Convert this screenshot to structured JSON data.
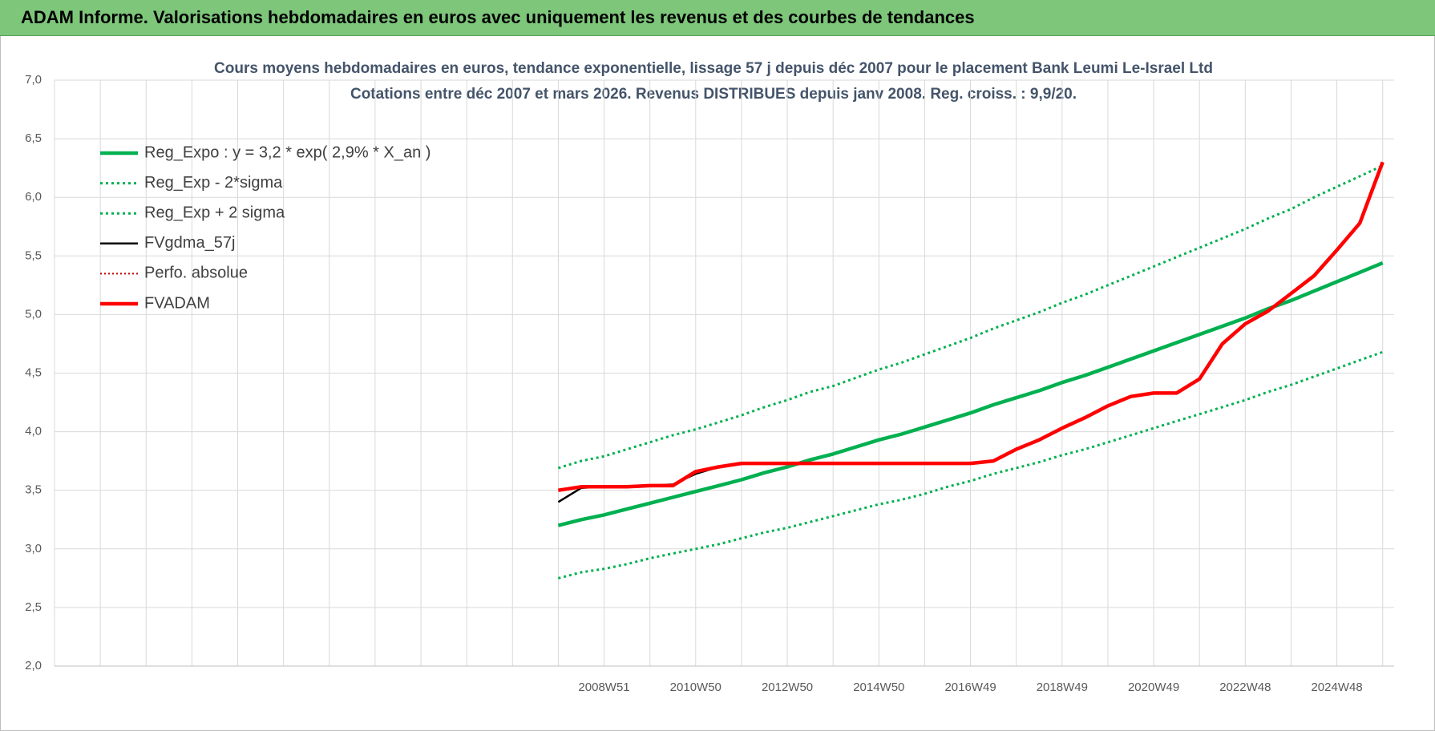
{
  "header": {
    "title": "ADAM Informe. Valorisations hebdomadaires en euros avec uniquement les revenus et des courbes de tendances"
  },
  "chart_data": {
    "type": "line",
    "title": "Cours moyens hebdomadaires en euros, tendance exponentielle, lissage 57 j depuis déc 2007 pour le placement Bank Leumi Le-Israel Ltd",
    "subtitle": "Cotations entre déc 2007 et mars 2026.  Revenus DISTRIBUES depuis janv 2008. Reg. croiss. : 9,9/20.",
    "categories": [
      null,
      null,
      null,
      null,
      null,
      null,
      null,
      null,
      null,
      null,
      null,
      null,
      null,
      null,
      null,
      null,
      null,
      null,
      null,
      null,
      null,
      null,
      null,
      null,
      "2008W51",
      null,
      null,
      null,
      "2010W50",
      null,
      null,
      null,
      "2012W50",
      null,
      null,
      null,
      "2014W50",
      null,
      null,
      null,
      "2016W49",
      null,
      null,
      null,
      "2018W49",
      null,
      null,
      null,
      "2020W49",
      null,
      null,
      null,
      "2022W48",
      null,
      null,
      null,
      "2024W48",
      null,
      null
    ],
    "ylim": [
      2.0,
      7.0
    ],
    "yticks": [
      {
        "value": 2,
        "label": "2,0"
      },
      {
        "value": 2.5,
        "label": "2,5"
      },
      {
        "value": 3,
        "label": "3,0"
      },
      {
        "value": 3.5,
        "label": "3,5"
      },
      {
        "value": 4,
        "label": "4,0"
      },
      {
        "value": 4.5,
        "label": "4,5"
      },
      {
        "value": 5,
        "label": "5,0"
      },
      {
        "value": 5.5,
        "label": "5,5"
      },
      {
        "value": 6,
        "label": "6,0"
      },
      {
        "value": 6.5,
        "label": "6,5"
      },
      {
        "value": 7,
        "label": "7,0"
      }
    ],
    "grid": true,
    "legend": "top-left",
    "series": [
      {
        "name": "Reg_Expo : y = 3,2 * exp( 2,9% *  X_an )",
        "color": "#00b050",
        "style": "thick",
        "values": [
          null,
          null,
          null,
          null,
          null,
          null,
          null,
          null,
          null,
          null,
          null,
          null,
          null,
          null,
          null,
          null,
          null,
          null,
          null,
          null,
          null,
          null,
          3.2,
          3.25,
          3.29,
          3.34,
          3.39,
          3.44,
          3.49,
          3.54,
          3.59,
          3.65,
          3.7,
          3.76,
          3.81,
          3.87,
          3.93,
          3.98,
          4.04,
          4.1,
          4.16,
          4.23,
          4.29,
          4.35,
          4.42,
          4.48,
          4.55,
          4.62,
          4.69,
          4.76,
          4.83,
          4.9,
          4.97,
          5.05,
          5.12,
          5.2,
          5.28,
          5.36,
          5.44
        ]
      },
      {
        "name": "Reg_Exp - 2*sigma",
        "color": "#00b050",
        "style": "dotted",
        "values": [
          null,
          null,
          null,
          null,
          null,
          null,
          null,
          null,
          null,
          null,
          null,
          null,
          null,
          null,
          null,
          null,
          null,
          null,
          null,
          null,
          null,
          null,
          2.75,
          2.8,
          2.83,
          2.87,
          2.92,
          2.96,
          3.0,
          3.04,
          3.09,
          3.14,
          3.18,
          3.23,
          3.28,
          3.33,
          3.38,
          3.42,
          3.47,
          3.53,
          3.58,
          3.64,
          3.69,
          3.74,
          3.8,
          3.85,
          3.91,
          3.97,
          4.03,
          4.09,
          4.15,
          4.21,
          4.27,
          4.34,
          4.4,
          4.47,
          4.54,
          4.61,
          4.68
        ]
      },
      {
        "name": "Reg_Exp + 2 sigma",
        "color": "#00b050",
        "style": "dotted",
        "values": [
          null,
          null,
          null,
          null,
          null,
          null,
          null,
          null,
          null,
          null,
          null,
          null,
          null,
          null,
          null,
          null,
          null,
          null,
          null,
          null,
          null,
          null,
          3.69,
          3.75,
          3.79,
          3.85,
          3.91,
          3.97,
          4.02,
          4.08,
          4.14,
          4.21,
          4.27,
          4.34,
          4.39,
          4.46,
          4.53,
          4.59,
          4.66,
          4.73,
          4.8,
          4.88,
          4.95,
          5.02,
          5.1,
          5.17,
          5.25,
          5.33,
          5.41,
          5.49,
          5.57,
          5.65,
          5.73,
          5.82,
          5.9,
          6.0,
          6.09,
          6.18,
          6.27
        ]
      },
      {
        "name": "FVgdma_57j",
        "color": "#000000",
        "style": "thin",
        "values": [
          null,
          null,
          null,
          null,
          null,
          null,
          null,
          null,
          null,
          null,
          null,
          null,
          null,
          null,
          null,
          null,
          null,
          null,
          null,
          null,
          null,
          null,
          3.4,
          3.52,
          3.53,
          3.53,
          3.54,
          3.55,
          3.64,
          3.7,
          3.73,
          3.73,
          3.73,
          3.73,
          3.73,
          3.73,
          3.73,
          3.73,
          3.73,
          3.73,
          3.73,
          3.75,
          3.85,
          3.93,
          4.03,
          4.12,
          4.22,
          4.3,
          4.33,
          4.33,
          4.45,
          4.75,
          4.92,
          5.03,
          5.18,
          5.33,
          5.55,
          5.78,
          6.3
        ]
      },
      {
        "name": "Perfo. absolue",
        "color": "#c00000",
        "style": "dotted-thin",
        "values": [
          null,
          null,
          null,
          null,
          null,
          null,
          null,
          null,
          null,
          null,
          null,
          null,
          null,
          null,
          null,
          null,
          null,
          null,
          null,
          null,
          null,
          null,
          3.5,
          3.53,
          3.53,
          3.53,
          3.54,
          3.54,
          3.66,
          3.7,
          3.73,
          3.73,
          3.73,
          3.73,
          3.73,
          3.73,
          3.73,
          3.73,
          3.73,
          3.73,
          3.73,
          3.75,
          3.85,
          3.93,
          4.03,
          4.12,
          4.22,
          4.3,
          4.33,
          4.33,
          4.45,
          4.75,
          4.92,
          5.03,
          5.18,
          5.33,
          5.55,
          5.78,
          6.3
        ]
      },
      {
        "name": "FVADAM",
        "color": "#ff0000",
        "style": "thick",
        "values": [
          null,
          null,
          null,
          null,
          null,
          null,
          null,
          null,
          null,
          null,
          null,
          null,
          null,
          null,
          null,
          null,
          null,
          null,
          null,
          null,
          null,
          null,
          3.5,
          3.53,
          3.53,
          3.53,
          3.54,
          3.54,
          3.66,
          3.7,
          3.73,
          3.73,
          3.73,
          3.73,
          3.73,
          3.73,
          3.73,
          3.73,
          3.73,
          3.73,
          3.73,
          3.75,
          3.85,
          3.93,
          4.03,
          4.12,
          4.22,
          4.3,
          4.33,
          4.33,
          4.45,
          4.75,
          4.92,
          5.03,
          5.18,
          5.33,
          5.55,
          5.78,
          6.3
        ]
      }
    ]
  }
}
